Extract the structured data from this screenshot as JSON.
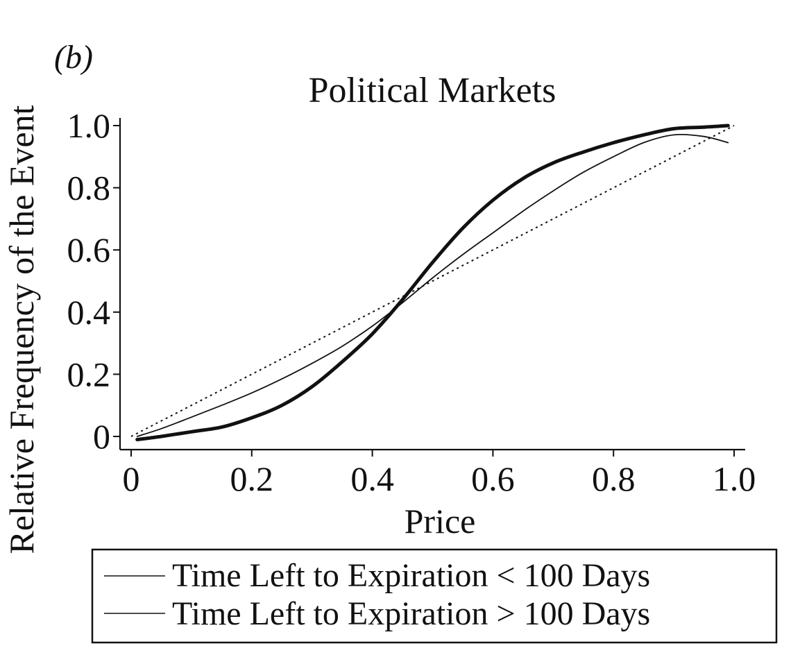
{
  "panel_label": "(b)",
  "chart_data": {
    "type": "line",
    "title": "Political Markets",
    "xlabel": "Price",
    "ylabel": "Relative Frequency of the Event",
    "xlim": [
      0,
      1.0
    ],
    "ylim": [
      0,
      1.0
    ],
    "x_ticks": [
      "0",
      "0.2",
      "0.4",
      "0.6",
      "0.8",
      "1.0"
    ],
    "y_ticks": [
      "0",
      "0.2",
      "0.4",
      "0.6",
      "0.8",
      "1.0"
    ],
    "grid": false,
    "legend_position": "bottom",
    "reference_line": {
      "style": "dotted",
      "x": [
        0,
        1.0
      ],
      "y": [
        0,
        1.0
      ]
    },
    "series": [
      {
        "name": "Time Left to Expiration < 100 Days",
        "style": "thin",
        "x": [
          0.01,
          0.05,
          0.1,
          0.15,
          0.2,
          0.25,
          0.3,
          0.35,
          0.4,
          0.45,
          0.5,
          0.55,
          0.6,
          0.65,
          0.7,
          0.75,
          0.8,
          0.85,
          0.9,
          0.95,
          0.99
        ],
        "y": [
          0.0,
          0.025,
          0.062,
          0.1,
          0.14,
          0.185,
          0.235,
          0.29,
          0.355,
          0.43,
          0.51,
          0.585,
          0.655,
          0.725,
          0.79,
          0.85,
          0.9,
          0.945,
          0.97,
          0.965,
          0.945
        ]
      },
      {
        "name": "Time Left to Expiration > 100 Days",
        "style": "thick",
        "x": [
          0.01,
          0.05,
          0.1,
          0.15,
          0.2,
          0.25,
          0.3,
          0.35,
          0.4,
          0.45,
          0.5,
          0.55,
          0.6,
          0.65,
          0.7,
          0.75,
          0.8,
          0.85,
          0.9,
          0.95,
          0.99
        ],
        "y": [
          -0.01,
          0.0,
          0.015,
          0.03,
          0.06,
          0.1,
          0.16,
          0.24,
          0.33,
          0.44,
          0.56,
          0.67,
          0.76,
          0.83,
          0.88,
          0.915,
          0.945,
          0.97,
          0.99,
          0.995,
          1.0
        ]
      }
    ]
  }
}
